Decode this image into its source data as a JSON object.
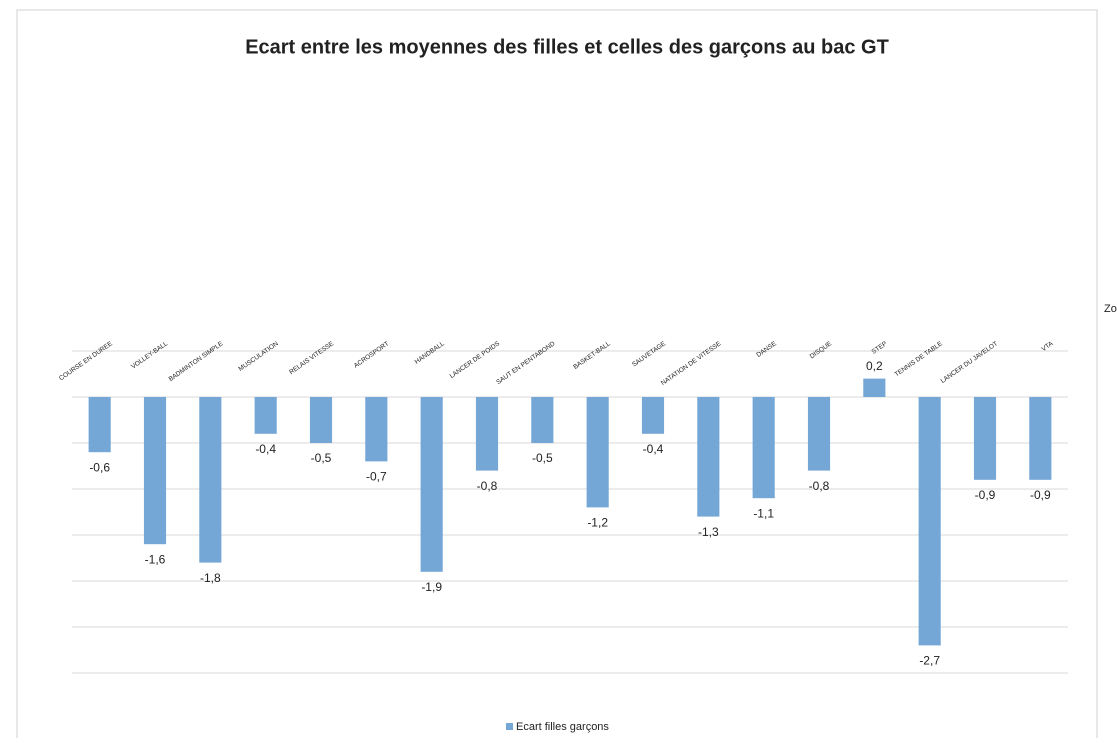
{
  "chart_data": {
    "type": "bar",
    "title": "Ecart entre les moyennes des filles et celles des garçons au bac GT",
    "categories": [
      "COURSE EN DUREE",
      "VOLLEY-BALL",
      "BADMINTON SIMPLE",
      "MUSCULATION",
      "RELAIS VITESSE",
      "ACROSPORT",
      "HANDBALL",
      "LANCER DE POIDS",
      "SAUT EN PENTABOND",
      "BASKET-BALL",
      "SAUVETAGE",
      "NATATION DE VITESSE",
      "DANSE",
      "DISQUE",
      "STEP",
      "TENNIS DE TABLE",
      "LANCER DU JAVELOT",
      "VTA"
    ],
    "series": [
      {
        "name": "Ecart filles garçons",
        "color": "#74a7d6",
        "values": [
          -0.6,
          -1.6,
          -1.8,
          -0.4,
          -0.5,
          -0.7,
          -1.9,
          -0.8,
          -0.5,
          -1.2,
          -0.4,
          -1.3,
          -1.1,
          -0.8,
          0.2,
          -2.7,
          -0.9,
          -0.9
        ],
        "value_labels": [
          "-0,6",
          "-1,6",
          "-1,8",
          "-0,4",
          "-0,5",
          "-0,7",
          "-1,9",
          "-0,8",
          "-0,5",
          "-1,2",
          "-0,4",
          "-1,3",
          "-1,1",
          "-0,8",
          "0,2",
          "-2,7",
          "-0,9",
          "-0,9"
        ]
      }
    ],
    "ylim": [
      -3,
      0.5
    ],
    "yticks": [
      -3,
      -2.5,
      -2,
      -1.5,
      -1,
      -0.5,
      0,
      0.5
    ],
    "grid": true
  },
  "side_text": "Zo"
}
